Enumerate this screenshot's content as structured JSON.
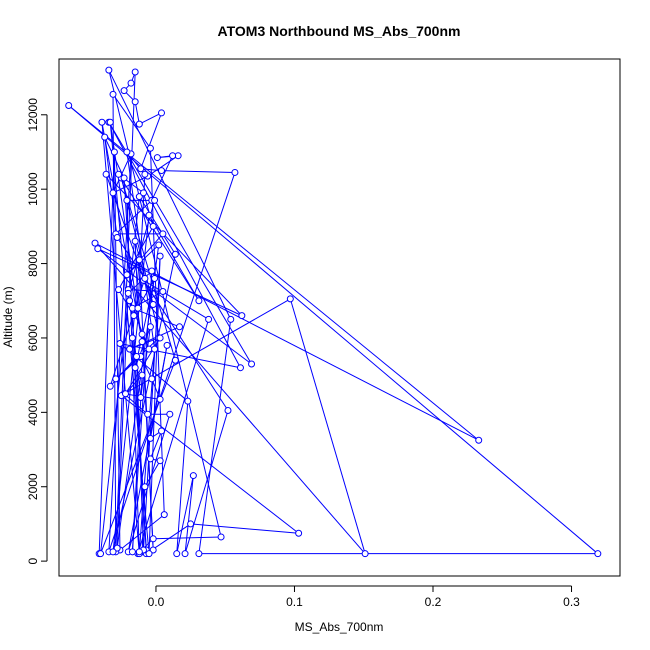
{
  "chart_data": {
    "type": "line",
    "title": "ATOM3 Northbound MS_Abs_700nm",
    "xlabel": "MS_Abs_700nm",
    "ylabel": "Altitude (m)",
    "xlim": [
      -0.07,
      0.335
    ],
    "ylim": [
      -400,
      13500
    ],
    "xticks": [
      0.0,
      0.1,
      0.2,
      0.3
    ],
    "xtick_labels": [
      "0.0",
      "0.1",
      "0.2",
      "0.3"
    ],
    "yticks": [
      0,
      2000,
      4000,
      6000,
      8000,
      10000,
      12000
    ],
    "ytick_labels": [
      "0",
      "2000",
      "4000",
      "6000",
      "8000",
      "10000",
      "12000"
    ],
    "grid": false,
    "series": [
      {
        "color": "#0000ff",
        "marker": "open-circle",
        "points": [
          [
            -0.041,
            200
          ],
          [
            -0.03,
            11000
          ],
          [
            -0.026,
            300
          ],
          [
            0.006,
            1250
          ],
          [
            -0.004,
            11100
          ],
          [
            -0.031,
            12550
          ],
          [
            -0.029,
            250
          ],
          [
            -0.015,
            13150
          ],
          [
            -0.018,
            12850
          ],
          [
            -0.023,
            12650
          ],
          [
            -0.015,
            12350
          ],
          [
            -0.012,
            11750
          ],
          [
            0.004,
            12050
          ],
          [
            -0.011,
            10550
          ],
          [
            0.004,
            10500
          ],
          [
            0.057,
            10450
          ],
          [
            -0.034,
            250
          ],
          [
            -0.018,
            10950
          ],
          [
            -0.031,
            9900
          ],
          [
            -0.006,
            10350
          ],
          [
            0.016,
            10900
          ],
          [
            0.001,
            10850
          ],
          [
            0.012,
            10900
          ],
          [
            -0.003,
            9700
          ],
          [
            -0.029,
            8800
          ],
          [
            0.005,
            8800
          ],
          [
            -0.021,
            7700
          ],
          [
            0.002,
            8500
          ],
          [
            -0.028,
            350
          ],
          [
            -0.02,
            7300
          ],
          [
            0.005,
            7250
          ],
          [
            -0.017,
            6800
          ],
          [
            0.017,
            6300
          ],
          [
            -0.019,
            5700
          ],
          [
            0.002,
            6000
          ],
          [
            -0.029,
            4900
          ],
          [
            -0.011,
            5500
          ],
          [
            -0.003,
            4900
          ],
          [
            0.003,
            4350
          ],
          [
            -0.023,
            4500
          ],
          [
            -0.006,
            3950
          ],
          [
            0.01,
            3950
          ],
          [
            -0.02,
            250
          ],
          [
            0.008,
            5800
          ],
          [
            -0.004,
            3300
          ],
          [
            0.004,
            3500
          ],
          [
            -0.004,
            2750
          ],
          [
            0.003,
            2700
          ],
          [
            -0.008,
            2000
          ],
          [
            -0.01,
            250
          ],
          [
            -0.007,
            200
          ],
          [
            0.025,
            1000
          ],
          [
            0.103,
            750
          ],
          [
            -0.025,
            4450
          ],
          [
            0.097,
            7050
          ],
          [
            0.151,
            200
          ],
          [
            -0.044,
            8550
          ],
          [
            0.233,
            3250
          ],
          [
            -0.063,
            12250
          ],
          [
            0.319,
            200
          ],
          [
            0.031,
            200
          ],
          [
            0.054,
            6500
          ],
          [
            -0.034,
            13200
          ],
          [
            0.047,
            650
          ],
          [
            -0.002,
            600
          ],
          [
            -0.013,
            200
          ],
          [
            0.038,
            6500
          ],
          [
            -0.009,
            7550
          ],
          [
            0.052,
            4050
          ],
          [
            0.021,
            200
          ],
          [
            0.027,
            2300
          ],
          [
            0.015,
            200
          ],
          [
            0.023,
            4300
          ],
          [
            -0.026,
            5850
          ],
          [
            0.061,
            5200
          ],
          [
            -0.034,
            11800
          ],
          [
            0.069,
            5300
          ],
          [
            -0.042,
            8400
          ],
          [
            0.062,
            6600
          ],
          [
            -0.036,
            10400
          ],
          [
            -0.002,
            6900
          ],
          [
            -0.025,
            10300
          ],
          [
            0.014,
            5400
          ],
          [
            -0.04,
            200
          ],
          [
            -0.012,
            9800
          ],
          [
            0.014,
            8250
          ],
          [
            -0.031,
            250
          ],
          [
            -0.005,
            9300
          ],
          [
            0.031,
            7000
          ],
          [
            -0.027,
            10400
          ],
          [
            -0.009,
            9900
          ],
          [
            -0.002,
            9000
          ],
          [
            -0.027,
            7300
          ],
          [
            -0.016,
            6600
          ],
          [
            -0.001,
            7600
          ],
          [
            -0.015,
            5200
          ],
          [
            -0.004,
            6300
          ],
          [
            -0.011,
            4400
          ],
          [
            -0.019,
            7000
          ],
          [
            -0.005,
            5700
          ],
          [
            -0.01,
            6100
          ],
          [
            -0.002,
            300
          ],
          [
            -0.012,
            8100
          ],
          [
            -0.017,
            6000
          ],
          [
            -0.007,
            300
          ],
          [
            -0.023,
            10300
          ],
          [
            -0.037,
            11400
          ],
          [
            -0.028,
            8700
          ],
          [
            -0.008,
            7600
          ],
          [
            -0.033,
            4700
          ],
          [
            -0.014,
            5500
          ],
          [
            -0.009,
            300
          ],
          [
            0.003,
            8200
          ],
          [
            -0.005,
            200
          ],
          [
            -0.033,
            11800
          ],
          [
            -0.01,
            5900
          ],
          [
            -0.039,
            11800
          ],
          [
            -0.012,
            200
          ],
          [
            -0.021,
            9700
          ],
          [
            -0.001,
            9700
          ],
          [
            -0.02,
            7200
          ],
          [
            -0.003,
            7800
          ],
          [
            -0.017,
            250
          ],
          [
            -0.01,
            5000
          ],
          [
            -0.022,
            4500
          ],
          [
            0.003,
            6000
          ],
          [
            -0.015,
            8600
          ],
          [
            -0.013,
            6800
          ],
          [
            -0.008,
            10400
          ],
          [
            -0.021,
            11000
          ],
          [
            -0.001,
            5700
          ],
          [
            -0.012,
            250
          ]
        ]
      }
    ]
  }
}
